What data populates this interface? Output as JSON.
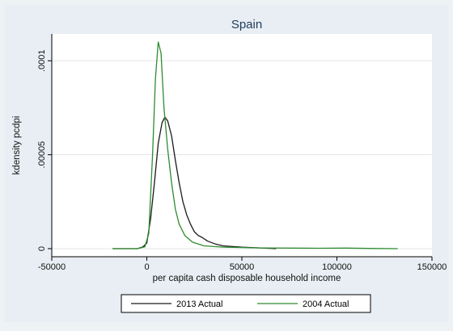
{
  "chart_data": {
    "type": "line",
    "title": "Spain",
    "xlabel": "per capita cash disposable household income",
    "ylabel": "kdensity pcdpi",
    "xlim": [
      -50000,
      150000
    ],
    "ylim": [
      0,
      0.00011
    ],
    "x_ticks": [
      -50000,
      0,
      50000,
      100000,
      150000
    ],
    "x_tick_labels": [
      "-50000",
      "0",
      "50000",
      "100000",
      "150000"
    ],
    "y_ticks": [
      0,
      5e-05,
      0.0001
    ],
    "y_tick_labels": [
      "0",
      ".00005",
      ".0001"
    ],
    "grid": true,
    "legend_position": "bottom",
    "series": [
      {
        "name": "2013 Actual",
        "color": "#1a1a1a",
        "points": [
          [
            -18000,
            0
          ],
          [
            -5000,
            0
          ],
          [
            -2000,
            1e-06
          ],
          [
            0,
            3e-06
          ],
          [
            2000,
            1.6e-05
          ],
          [
            4000,
            3.5e-05
          ],
          [
            6000,
            5.6e-05
          ],
          [
            8000,
            6.7e-05
          ],
          [
            9500,
            7e-05
          ],
          [
            11000,
            6.8e-05
          ],
          [
            13000,
            6e-05
          ],
          [
            15000,
            4.7e-05
          ],
          [
            17000,
            3.5e-05
          ],
          [
            19000,
            2.5e-05
          ],
          [
            21000,
            1.8e-05
          ],
          [
            23000,
            1.3e-05
          ],
          [
            25000,
            9e-06
          ],
          [
            27000,
            7e-06
          ],
          [
            29000,
            6e-06
          ],
          [
            32000,
            4e-06
          ],
          [
            36000,
            2.5e-06
          ],
          [
            40000,
            1.5e-06
          ],
          [
            50000,
            8e-07
          ],
          [
            60000,
            4e-07
          ],
          [
            68000,
            0
          ]
        ]
      },
      {
        "name": "2004 Actual",
        "color": "#2e8b2e",
        "points": [
          [
            -18000,
            0
          ],
          [
            -5000,
            0
          ],
          [
            -1000,
            1e-06
          ],
          [
            1000,
            8e-06
          ],
          [
            3000,
            5e-05
          ],
          [
            4500,
            9e-05
          ],
          [
            6000,
            0.00011
          ],
          [
            7500,
            0.000104
          ],
          [
            9000,
            7.5e-05
          ],
          [
            11000,
            5.3e-05
          ],
          [
            13000,
            3.5e-05
          ],
          [
            15000,
            2.1e-05
          ],
          [
            17000,
            1.3e-05
          ],
          [
            20000,
            7e-06
          ],
          [
            24000,
            3.5e-06
          ],
          [
            30000,
            1.5e-06
          ],
          [
            40000,
            8e-07
          ],
          [
            60000,
            4e-07
          ],
          [
            90000,
            2e-07
          ],
          [
            105000,
            3e-07
          ],
          [
            120000,
            1e-07
          ],
          [
            132000,
            0
          ]
        ]
      }
    ]
  }
}
